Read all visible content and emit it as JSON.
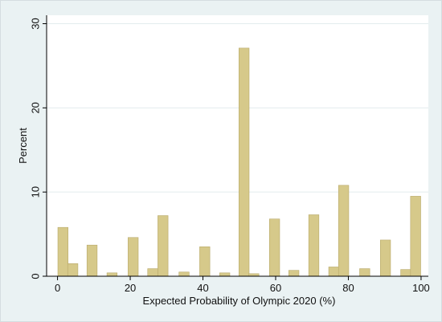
{
  "chart_data": {
    "type": "bar",
    "xlabel": "Expected Probability of Olympic 2020 (%)",
    "ylabel": "Percent",
    "xlim": [
      -3,
      102
    ],
    "ylim": [
      0,
      31
    ],
    "x_ticks": [
      0,
      20,
      40,
      60,
      80,
      100
    ],
    "y_ticks": [
      0,
      10,
      20,
      30
    ],
    "grid": true,
    "bin_width": 2.8,
    "bar_color": "#d6c98a",
    "bar_edge_color": "#b8a96a",
    "bars": [
      {
        "x": 1.5,
        "value": 5.8
      },
      {
        "x": 4.2,
        "value": 1.5
      },
      {
        "x": 9.5,
        "value": 3.7
      },
      {
        "x": 15.0,
        "value": 0.4
      },
      {
        "x": 20.8,
        "value": 4.6
      },
      {
        "x": 26.2,
        "value": 0.9
      },
      {
        "x": 29.0,
        "value": 7.2
      },
      {
        "x": 34.8,
        "value": 0.5
      },
      {
        "x": 40.5,
        "value": 3.5
      },
      {
        "x": 46.0,
        "value": 0.4
      },
      {
        "x": 51.3,
        "value": 27.1
      },
      {
        "x": 54.0,
        "value": 0.3
      },
      {
        "x": 59.7,
        "value": 6.8
      },
      {
        "x": 65.0,
        "value": 0.7
      },
      {
        "x": 70.5,
        "value": 7.3
      },
      {
        "x": 76.0,
        "value": 1.1
      },
      {
        "x": 78.7,
        "value": 10.8
      },
      {
        "x": 84.5,
        "value": 0.9
      },
      {
        "x": 90.2,
        "value": 4.3
      },
      {
        "x": 95.8,
        "value": 0.8
      },
      {
        "x": 98.5,
        "value": 9.5
      }
    ]
  }
}
